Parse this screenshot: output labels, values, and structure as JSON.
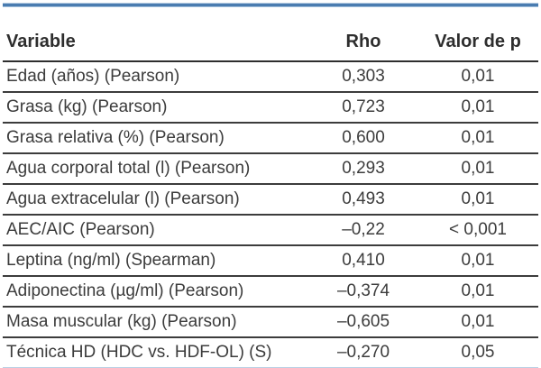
{
  "table": {
    "columns": {
      "variable": "Variable",
      "rho": "Rho",
      "p": "Valor de p"
    },
    "rows": [
      {
        "variable": "Edad (años) (Pearson)",
        "rho": "0,303",
        "p": "0,01"
      },
      {
        "variable": "Grasa (kg) (Pearson)",
        "rho": "0,723",
        "p": "0,01"
      },
      {
        "variable": "Grasa relativa (%) (Pearson)",
        "rho": "0,600",
        "p": "0,01"
      },
      {
        "variable": "Agua corporal total (l) (Pearson)",
        "rho": "0,293",
        "p": "0,01"
      },
      {
        "variable": "Agua extracelular (l) (Pearson)",
        "rho": "0,493",
        "p": "0,01"
      },
      {
        "variable": "AEC/AIC (Pearson)",
        "rho": "–0,22",
        "p": "< 0,001"
      },
      {
        "variable": "Leptina (ng/ml) (Spearman)",
        "rho": "0,410",
        "p": "0,01"
      },
      {
        "variable": "Adiponectina (µg/ml) (Pearson)",
        "rho": "–0,374",
        "p": "0,01"
      },
      {
        "variable": "Masa muscular (kg) (Pearson)",
        "rho": "–0,605",
        "p": "0,01"
      },
      {
        "variable": "Técnica HD (HDC vs. HDF-OL) (S)",
        "rho": "–0,270",
        "p": "0,05"
      }
    ],
    "colors": {
      "rule_blue": "#4a7cb0",
      "rule_light": "#b9cfe3",
      "text": "#3c3c3c"
    }
  }
}
